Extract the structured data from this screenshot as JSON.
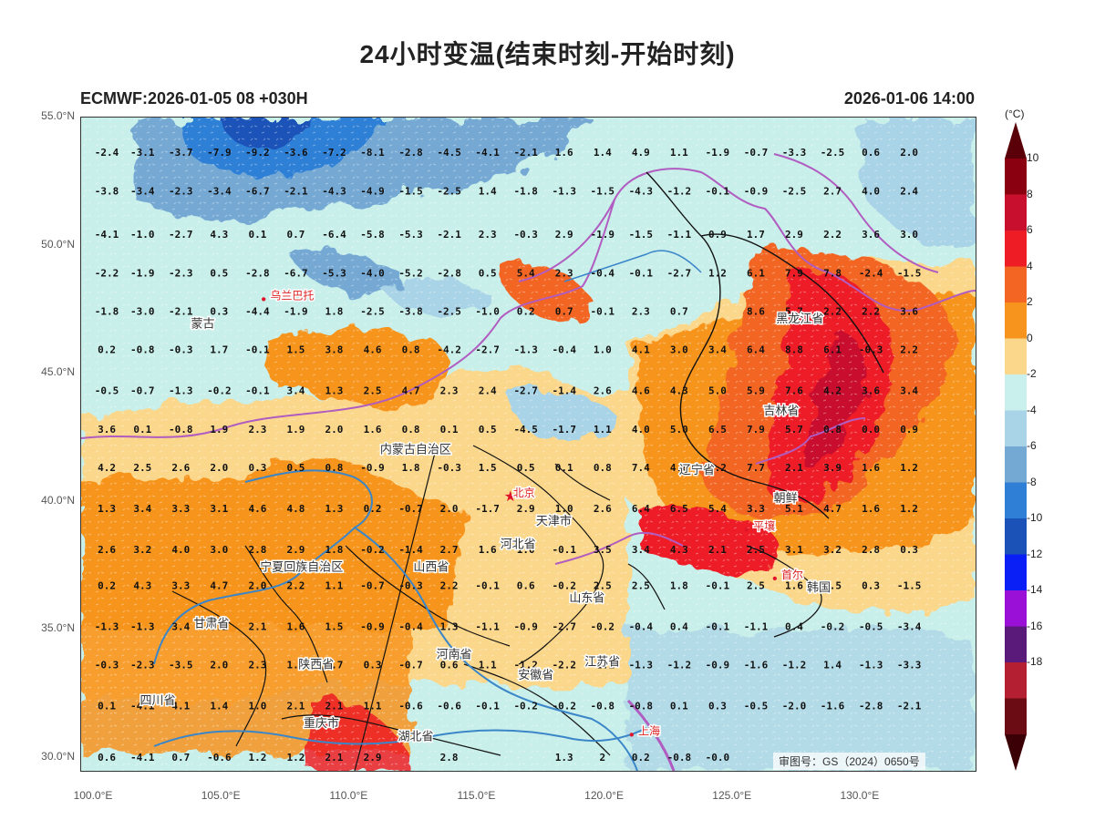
{
  "header": {
    "title": "24小时变温(结束时刻-开始时刻)",
    "model_run": "ECMWF:2026-01-05 08 +030H",
    "valid_time": "2026-01-06 14:00"
  },
  "map": {
    "lon_range": [
      99.5,
      134.5
    ],
    "lat_range": [
      29.5,
      55.0
    ],
    "lat_ticks": [
      "55.0°N",
      "50.0°N",
      "45.0°N",
      "40.0°N",
      "35.0°N",
      "30.0°N"
    ],
    "lon_ticks": [
      "100.0°E",
      "105.0°E",
      "110.0°E",
      "115.0°E",
      "120.0°E",
      "125.0°E",
      "130.0°E"
    ],
    "approval_number": "审图号：GS（2024）0650号",
    "place_labels": [
      {
        "name": "蒙古",
        "lon": 103.8,
        "lat": 46.8,
        "kind": "country"
      },
      {
        "name": "乌兰巴托",
        "lon": 106.9,
        "lat": 47.9,
        "kind": "city"
      },
      {
        "name": "黑龙江省",
        "lon": 126.7,
        "lat": 47.0,
        "kind": "province"
      },
      {
        "name": "吉林省",
        "lon": 126.2,
        "lat": 43.4,
        "kind": "province"
      },
      {
        "name": "内蒙古自治区",
        "lon": 111.2,
        "lat": 41.9,
        "kind": "province"
      },
      {
        "name": "辽宁省",
        "lon": 122.9,
        "lat": 41.1,
        "kind": "province"
      },
      {
        "name": "朝鲜",
        "lon": 126.6,
        "lat": 40.0,
        "kind": "country"
      },
      {
        "name": "北京",
        "lon": 116.4,
        "lat": 40.2,
        "kind": "city"
      },
      {
        "name": "天津市",
        "lon": 117.3,
        "lat": 39.1,
        "kind": "province"
      },
      {
        "name": "河北省",
        "lon": 115.9,
        "lat": 38.2,
        "kind": "province"
      },
      {
        "name": "平壤",
        "lon": 125.8,
        "lat": 38.9,
        "kind": "city"
      },
      {
        "name": "宁夏回族自治区",
        "lon": 106.5,
        "lat": 37.3,
        "kind": "province"
      },
      {
        "name": "山西省",
        "lon": 112.5,
        "lat": 37.3,
        "kind": "province"
      },
      {
        "name": "首尔",
        "lon": 126.9,
        "lat": 37.0,
        "kind": "city"
      },
      {
        "name": "韩国",
        "lon": 127.9,
        "lat": 36.5,
        "kind": "country"
      },
      {
        "name": "甘肃省",
        "lon": 103.9,
        "lat": 35.1,
        "kind": "province"
      },
      {
        "name": "山东省",
        "lon": 118.6,
        "lat": 36.1,
        "kind": "province"
      },
      {
        "name": "陕西省",
        "lon": 108.0,
        "lat": 33.5,
        "kind": "province"
      },
      {
        "name": "河南省",
        "lon": 113.4,
        "lat": 33.9,
        "kind": "province"
      },
      {
        "name": "江苏省",
        "lon": 119.2,
        "lat": 33.6,
        "kind": "province"
      },
      {
        "name": "安徽省",
        "lon": 116.6,
        "lat": 33.1,
        "kind": "province"
      },
      {
        "name": "四川省",
        "lon": 101.8,
        "lat": 32.1,
        "kind": "province"
      },
      {
        "name": "重庆市",
        "lon": 108.2,
        "lat": 31.2,
        "kind": "province"
      },
      {
        "name": "湖北省",
        "lon": 111.9,
        "lat": 30.7,
        "kind": "province"
      },
      {
        "name": "上海",
        "lon": 121.3,
        "lat": 30.9,
        "kind": "city"
      }
    ]
  },
  "colorbar": {
    "unit": "(°C)",
    "labels": [
      "10",
      "8",
      "6",
      "4",
      "2",
      "0",
      "-2",
      "-4",
      "-6",
      "-8",
      "-10",
      "-12",
      "-14",
      "-16",
      "-18"
    ],
    "colors": [
      "#8b0010",
      "#c8102e",
      "#ee1c25",
      "#f26522",
      "#f7941d",
      "#fbd78b",
      "#c9f0ec",
      "#a9d3e6",
      "#74a9d4",
      "#2f7fd6",
      "#1a52b8",
      "#0a1ff5",
      "#9b10d6",
      "#5a1a7a",
      "#b51f32",
      "#6b0b14"
    ]
  },
  "grid_values": {
    "lats": [
      53.5,
      52.0,
      50.3,
      48.8,
      47.3,
      45.8,
      44.2,
      42.7,
      41.2,
      39.6,
      38.0,
      36.6,
      35.0,
      33.5,
      31.9,
      30.3,
      29.9
    ],
    "lons": [
      100.5,
      101.9,
      103.4,
      104.9,
      106.4,
      107.9,
      109.4,
      110.9,
      112.4,
      113.9,
      115.4,
      116.9,
      118.4,
      119.9,
      121.4,
      122.9,
      124.4,
      125.9,
      127.4,
      128.9,
      130.4,
      131.9,
      133.4
    ],
    "rows": [
      [
        "-2.4",
        "-3.1",
        "-3.7",
        "-7.9",
        "-9.2",
        "-3.6",
        "-7.2",
        "-8.1",
        "-2.8",
        "-4.5",
        "-4.1",
        "-2.1",
        "1.6",
        "1.4",
        "4.9",
        "1.1",
        "-1.9",
        "-0.7",
        "-3.3",
        "-2.5",
        "0.6",
        "2.0",
        ""
      ],
      [
        "-3.8",
        "-3.4",
        "-2.3",
        "-3.4",
        "-6.7",
        "-2.1",
        "-4.3",
        "-4.9",
        "-1.5",
        "-2.5",
        "1.4",
        "-1.8",
        "-1.3",
        "-1.5",
        "-4.3",
        "-1.2",
        "-0.1",
        "-0.9",
        "-2.5",
        "2.7",
        "4.0",
        "2.4",
        ""
      ],
      [
        "-4.1",
        "-1.0",
        "-2.7",
        "4.3",
        "0.1",
        "0.7",
        "-6.4",
        "-5.8",
        "-5.3",
        "-2.1",
        "2.3",
        "-0.3",
        "2.9",
        "-1.9",
        "-1.5",
        "-1.1",
        "0.9",
        "1.7",
        "2.9",
        "2.2",
        "3.6",
        "3.0",
        ""
      ],
      [
        "-2.2",
        "-1.9",
        "-2.3",
        "0.5",
        "-2.8",
        "-6.7",
        "-5.3",
        "-4.0",
        "-5.2",
        "-2.8",
        "0.5",
        "5.4",
        "2.3",
        "-0.4",
        "-0.1",
        "-2.7",
        "1.2",
        "6.1",
        "7.9",
        "7.8",
        "-2.4",
        "-1.5",
        ""
      ],
      [
        "-1.8",
        "-3.0",
        "-2.1",
        "0.3",
        "-4.4",
        "-1.9",
        "1.8",
        "-2.5",
        "-3.8",
        "-2.5",
        "-1.0",
        "0.2",
        "0.7",
        "-0.1",
        "2.3",
        "0.7",
        "",
        "8.6",
        "5.7",
        "2.2",
        "2.2",
        "3.6",
        ""
      ],
      [
        "0.2",
        "-0.8",
        "-0.3",
        "1.7",
        "-0.1",
        "1.5",
        "3.8",
        "4.6",
        "0.8",
        "-4.2",
        "-2.7",
        "-1.3",
        "-0.4",
        "1.0",
        "4.1",
        "3.0",
        "3.4",
        "6.4",
        "8.8",
        "6.1",
        "-0.3",
        "2.2",
        ""
      ],
      [
        "-0.5",
        "-0.7",
        "-1.3",
        "-0.2",
        "-0.1",
        "3.4",
        "1.3",
        "2.5",
        "4.7",
        "2.3",
        "2.4",
        "-2.7",
        "-1.4",
        "2.6",
        "4.6",
        "4.3",
        "5.0",
        "5.9",
        "7.6",
        "4.2",
        "3.6",
        "3.4",
        ""
      ],
      [
        "3.6",
        "0.1",
        "-0.8",
        "1.9",
        "2.3",
        "1.9",
        "2.0",
        "1.6",
        "0.8",
        "0.1",
        "0.5",
        "-4.5",
        "-1.7",
        "1.1",
        "4.0",
        "5.0",
        "6.5",
        "7.9",
        "5.7",
        "0.8",
        "0.0",
        "0.9",
        ""
      ],
      [
        "4.2",
        "2.5",
        "2.6",
        "2.0",
        "0.3",
        "0.5",
        "0.8",
        "-0.9",
        "1.8",
        "-0.3",
        "1.5",
        "0.5",
        "0.1",
        "0.8",
        "7.4",
        "4.6",
        "7.2",
        "7.7",
        "2.1",
        "3.9",
        "1.6",
        "1.2",
        ""
      ],
      [
        "1.3",
        "3.4",
        "3.3",
        "3.1",
        "4.6",
        "4.8",
        "1.3",
        "0.2",
        "-0.7",
        "2.0",
        "-1.7",
        "2.9",
        "1.0",
        "2.6",
        "6.4",
        "6.5",
        "5.4",
        "3.3",
        "5.1",
        "4.7",
        "1.6",
        "1.2",
        ""
      ],
      [
        "2.6",
        "3.2",
        "4.0",
        "3.0",
        "2.8",
        "2.9",
        "1.8",
        "-0.2",
        "-1.4",
        "2.7",
        "1.6",
        "1.0",
        "-0.1",
        "3.5",
        "3.4",
        "4.3",
        "2.1",
        "2.5",
        "3.1",
        "3.2",
        "2.8",
        "0.3",
        ""
      ],
      [
        "0.2",
        "4.3",
        "3.3",
        "4.7",
        "2.0",
        "2.2",
        "1.1",
        "-0.7",
        "-0.3",
        "2.2",
        "-0.1",
        "0.6",
        "-0.2",
        "2.5",
        "2.5",
        "1.8",
        "-0.1",
        "2.5",
        "1.6",
        "0.5",
        "0.3",
        "-1.5",
        ""
      ],
      [
        "-1.3",
        "-1.3",
        "3.4",
        "3.2",
        "2.1",
        "1.6",
        "1.5",
        "-0.9",
        "-0.4",
        "1.3",
        "-1.1",
        "-0.9",
        "-2.7",
        "-0.2",
        "-0.4",
        "0.4",
        "-0.1",
        "-1.1",
        "0.4",
        "-0.2",
        "-0.5",
        "-3.4",
        ""
      ],
      [
        "-0.3",
        "-2.3",
        "-3.5",
        "2.0",
        "2.3",
        "1.0",
        "0.7",
        "0.3",
        "-0.7",
        "0.6",
        "1.1",
        "-1.2",
        "-2.2",
        "-2.1",
        "-1.3",
        "-1.2",
        "-0.9",
        "-1.6",
        "-1.2",
        "1.4",
        "-1.3",
        "-3.3",
        ""
      ],
      [
        "0.1",
        "-4.1",
        "4.1",
        "1.4",
        "1.0",
        "2.1",
        "2.1",
        "1.1",
        "-0.6",
        "-0.6",
        "-0.1",
        "-0.2",
        "-0.2",
        "-0.8",
        "-0.8",
        "0.1",
        "0.3",
        "-0.5",
        "-2.0",
        "-1.6",
        "-2.8",
        "-2.1",
        ""
      ],
      [
        "",
        "",
        "",
        "",
        "",
        "",
        "",
        "",
        "",
        "",
        "",
        "",
        "",
        "",
        "",
        "",
        "",
        "",
        "",
        "",
        "",
        "",
        ""
      ],
      [
        "0.6",
        "-4.1",
        "0.7",
        "-0.6",
        "1.2",
        "1.2",
        "2.1",
        "2.9",
        "",
        "2.8",
        "",
        "",
        "1.3",
        "2",
        "0.2",
        "-0.8",
        "-0.0",
        "",
        "",
        "",
        "",
        "",
        ""
      ]
    ]
  }
}
